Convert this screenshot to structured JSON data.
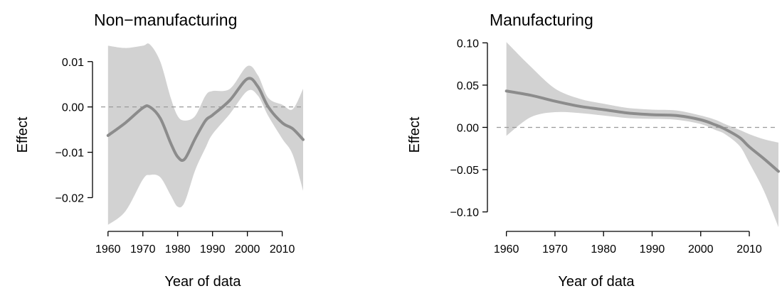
{
  "chart_data": [
    {
      "type": "line",
      "title": "Non−manufacturing",
      "xlabel": "Year of data",
      "ylabel": "Effect",
      "xlim": [
        1958,
        2016
      ],
      "ylim": [
        -0.0265,
        0.0145
      ],
      "xticks": [
        1960,
        1970,
        1980,
        1990,
        2000,
        2010
      ],
      "xtick_labels": [
        "1960",
        "1970",
        "1980",
        "1990",
        "2000",
        "2010"
      ],
      "yticks": [
        0.01,
        0.0,
        -0.01,
        -0.02
      ],
      "ytick_labels": [
        "0.01",
        "0.00",
        "−0.01",
        "−0.02"
      ],
      "reference_line": 0,
      "x": [
        1960,
        1965,
        1970,
        1972,
        1975,
        1978,
        1980,
        1982,
        1985,
        1988,
        1990,
        1995,
        2000,
        2003,
        2006,
        2010,
        2013,
        2016
      ],
      "estimate": [
        -0.0063,
        -0.0035,
        -0.0002,
        0.0,
        -0.0025,
        -0.008,
        -0.011,
        -0.0115,
        -0.007,
        -0.003,
        -0.0018,
        0.0015,
        0.0062,
        0.0045,
        0.0,
        -0.0035,
        -0.0048,
        -0.0072
      ],
      "lower": [
        -0.026,
        -0.023,
        -0.016,
        -0.015,
        -0.0155,
        -0.0195,
        -0.022,
        -0.021,
        -0.014,
        -0.009,
        -0.006,
        -0.0015,
        0.0035,
        0.0025,
        -0.002,
        -0.007,
        -0.0105,
        -0.0185
      ],
      "upper": [
        0.0135,
        0.013,
        0.0135,
        0.0138,
        0.01,
        0.002,
        -0.002,
        -0.003,
        -0.002,
        0.0025,
        0.0035,
        0.004,
        0.009,
        0.007,
        0.002,
        0.0005,
        -0.0005,
        0.004
      ]
    },
    {
      "type": "line",
      "title": "Manufacturing",
      "xlabel": "Year of data",
      "ylabel": "Effect",
      "xlim": [
        1958,
        2016
      ],
      "ylim": [
        -0.118,
        0.102
      ],
      "xticks": [
        1960,
        1970,
        1980,
        1990,
        2000,
        2010
      ],
      "xtick_labels": [
        "1960",
        "1970",
        "1980",
        "1990",
        "2000",
        "2010"
      ],
      "yticks": [
        0.1,
        0.05,
        0.0,
        -0.05,
        -0.1
      ],
      "ytick_labels": [
        "0.10",
        "0.05",
        "0.00",
        "−0.05",
        "−0.10"
      ],
      "reference_line": 0,
      "x": [
        1960,
        1965,
        1970,
        1975,
        1980,
        1985,
        1990,
        1995,
        2000,
        2003,
        2005,
        2008,
        2010,
        2013,
        2016
      ],
      "estimate": [
        0.043,
        0.038,
        0.031,
        0.025,
        0.021,
        0.017,
        0.015,
        0.014,
        0.009,
        0.003,
        -0.002,
        -0.012,
        -0.023,
        -0.037,
        -0.052
      ],
      "lower": [
        -0.01,
        0.012,
        0.018,
        0.017,
        0.014,
        0.011,
        0.01,
        0.009,
        0.004,
        -0.003,
        -0.008,
        -0.022,
        -0.042,
        -0.075,
        -0.118
      ],
      "upper": [
        0.101,
        0.072,
        0.046,
        0.034,
        0.028,
        0.023,
        0.021,
        0.02,
        0.014,
        0.009,
        0.004,
        -0.003,
        -0.008,
        -0.014,
        -0.018
      ]
    }
  ]
}
